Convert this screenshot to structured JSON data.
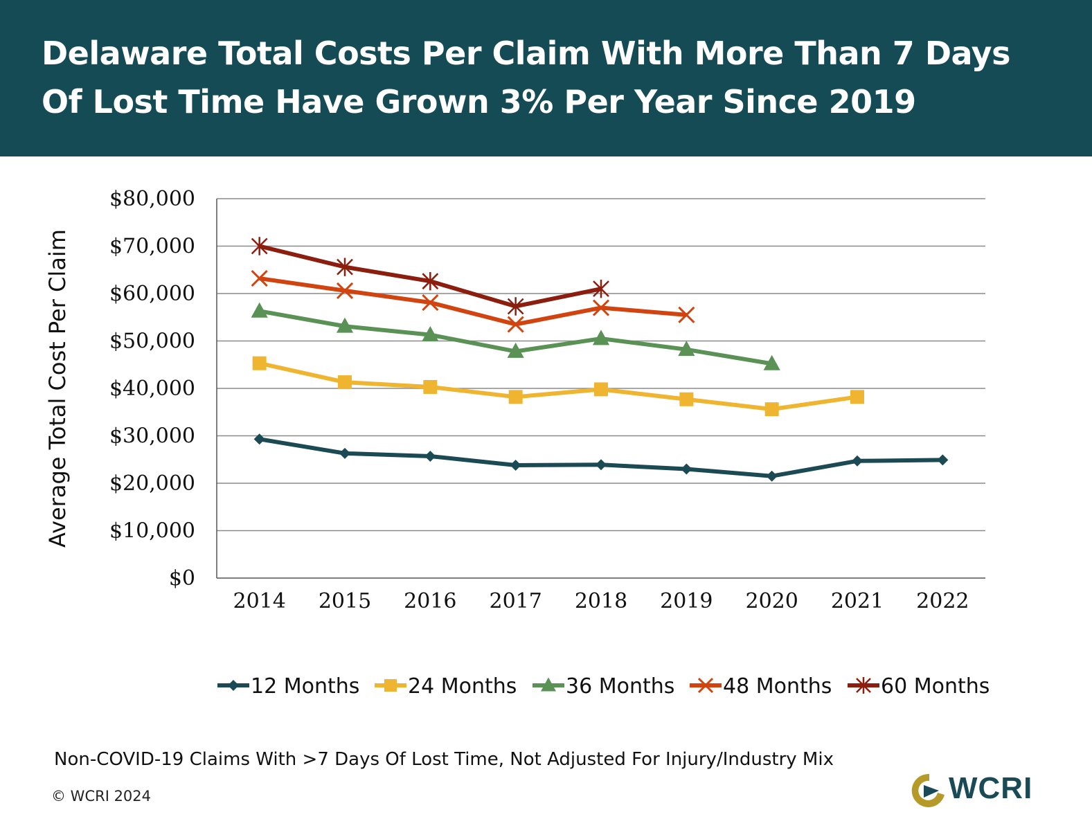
{
  "header": {
    "title_line1": "Delaware Total Costs Per Claim With More Than 7 Days",
    "title_line2": "Of Lost Time Have Grown 3% Per Year Since 2019",
    "background": "#154b55"
  },
  "chart_data": {
    "type": "line",
    "title": "Delaware Total Costs Per Claim With More Than 7 Days Of Lost Time Have Grown 3% Per Year Since 2019",
    "xlabel": "",
    "ylabel": "Average Total Cost Per Claim",
    "categories": [
      "2014",
      "2015",
      "2016",
      "2017",
      "2018",
      "2019",
      "2020",
      "2021",
      "2022"
    ],
    "ylim": [
      0,
      80000
    ],
    "yticks": [
      0,
      10000,
      20000,
      30000,
      40000,
      50000,
      60000,
      70000,
      80000
    ],
    "ytick_labels": [
      "$0",
      "$10,000",
      "$20,000",
      "$30,000",
      "$40,000",
      "$50,000",
      "$60,000",
      "$70,000",
      "$80,000"
    ],
    "grid": true,
    "legend_position": "bottom",
    "series": [
      {
        "name": "12 Months",
        "color": "#1b4a55",
        "marker": "diamond",
        "values": [
          29300,
          26300,
          25700,
          23800,
          23900,
          23000,
          21500,
          24700,
          24900
        ]
      },
      {
        "name": "24 Months",
        "color": "#f0b530",
        "marker": "square",
        "values": [
          45300,
          41300,
          40300,
          38200,
          39800,
          37700,
          35600,
          38200,
          null
        ]
      },
      {
        "name": "36 Months",
        "color": "#5a9155",
        "marker": "triangle",
        "values": [
          56300,
          53100,
          51300,
          47800,
          50500,
          48200,
          45200,
          null,
          null
        ]
      },
      {
        "name": "48 Months",
        "color": "#d2440f",
        "marker": "x",
        "values": [
          63200,
          60600,
          58100,
          53500,
          57000,
          55500,
          null,
          null,
          null
        ]
      },
      {
        "name": "60 Months",
        "color": "#8b1e0e",
        "marker": "asterisk",
        "values": [
          70000,
          65600,
          62600,
          57300,
          61000,
          null,
          null,
          null,
          null
        ]
      }
    ]
  },
  "footnote": "Non-COVID-19 Claims With >7 Days Of Lost Time, Not Adjusted For Injury/Industry Mix",
  "copyright": "© WCRI 2024",
  "logo": {
    "text": "WCRI",
    "ring_color": "#b59a2a"
  }
}
